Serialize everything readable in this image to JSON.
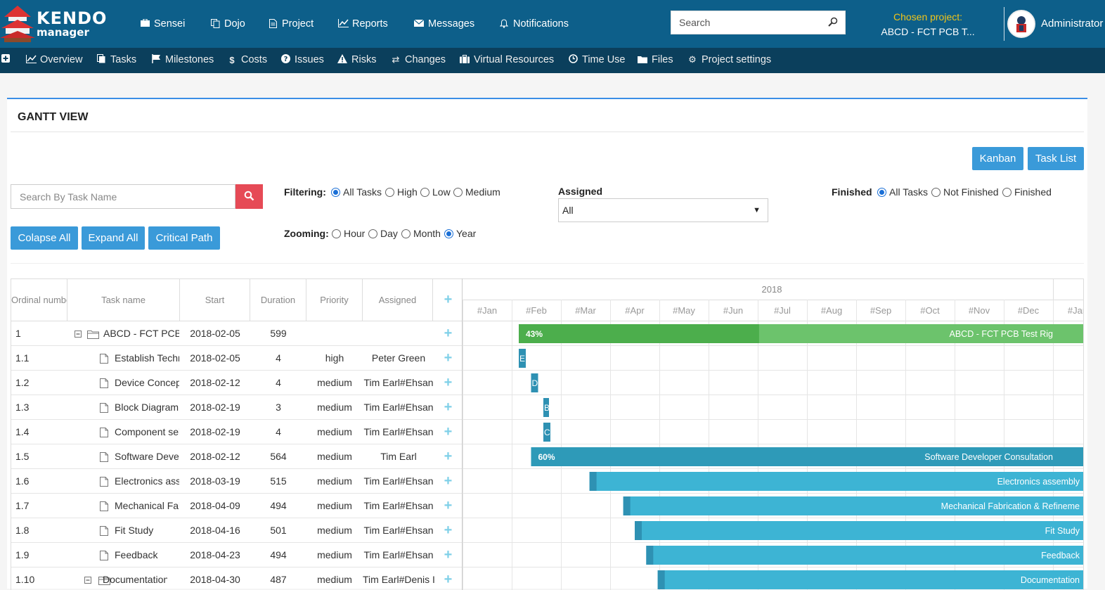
{
  "nav": {
    "brand_top": "KENDO",
    "brand_bottom": "manager",
    "items": [
      {
        "label": "Sensei",
        "icon": "briefcase-icon"
      },
      {
        "label": "Dojo",
        "icon": "copy-icon"
      },
      {
        "label": "Project",
        "icon": "document-icon"
      },
      {
        "label": "Reports",
        "icon": "line-chart-icon"
      },
      {
        "label": "Messages",
        "icon": "envelope-icon"
      },
      {
        "label": "Notifications",
        "icon": "bell-icon"
      }
    ],
    "search_placeholder": "Search",
    "chosen_label": "Chosen project:",
    "chosen_value": "ABCD - FCT PCB T...",
    "user": "Administrator"
  },
  "subnav": {
    "items": [
      {
        "label": "Overview",
        "icon": "area-chart-icon"
      },
      {
        "label": "Tasks",
        "icon": "tasks-icon"
      },
      {
        "label": "Milestones",
        "icon": "flag-icon"
      },
      {
        "label": "Costs",
        "icon": "dollar-icon"
      },
      {
        "label": "Issues",
        "icon": "question-circle-icon"
      },
      {
        "label": "Risks",
        "icon": "warning-icon"
      },
      {
        "label": "Changes",
        "icon": "exchange-icon"
      },
      {
        "label": "Virtual Resources",
        "icon": "suitcase-icon"
      },
      {
        "label": "Time Use",
        "icon": "clock-icon"
      },
      {
        "label": "Files",
        "icon": "folder-icon"
      },
      {
        "label": "Project settings",
        "icon": "cogs-icon"
      }
    ]
  },
  "page": {
    "title": "GANTT VIEW",
    "kanban": "Kanban",
    "task_list": "Task List",
    "task_search_placeholder": "Search By Task Name",
    "collapse_all": "Colapse All",
    "expand_all": "Expand All",
    "critical_path": "Critical Path"
  },
  "filters": {
    "filtering_label": "Filtering:",
    "filtering_options": [
      "All Tasks",
      "High",
      "Low",
      "Medium"
    ],
    "filtering_selected": 0,
    "zooming_label": "Zooming:",
    "zooming_options": [
      "Hour",
      "Day",
      "Month",
      "Year"
    ],
    "zooming_selected": 3,
    "assigned_label": "Assigned",
    "assigned_value": "All",
    "finished_label": "Finished",
    "finished_options": [
      "All Tasks",
      "Not Finished",
      "Finished"
    ],
    "finished_selected": 0
  },
  "grid": {
    "columns": [
      "Ordinal numbe",
      "Task name",
      "Start",
      "Duration",
      "Priority",
      "Assigned"
    ],
    "rows": [
      {
        "num": "1",
        "name": "ABCD - FCT PCB T",
        "start": "2018-02-05",
        "duration": "599",
        "priority": "",
        "assigned": "",
        "type": "folder"
      },
      {
        "num": "1.1",
        "name": "Establish Techn",
        "start": "2018-02-05",
        "duration": "4",
        "priority": "high",
        "assigned": "Peter Green",
        "type": "file"
      },
      {
        "num": "1.2",
        "name": "Device Concept",
        "start": "2018-02-12",
        "duration": "4",
        "priority": "medium",
        "assigned": "Tim Earl#Ehsan",
        "type": "file"
      },
      {
        "num": "1.3",
        "name": "Block Diagram",
        "start": "2018-02-19",
        "duration": "3",
        "priority": "medium",
        "assigned": "Tim Earl#Ehsan",
        "type": "file"
      },
      {
        "num": "1.4",
        "name": "Component sele",
        "start": "2018-02-19",
        "duration": "4",
        "priority": "medium",
        "assigned": "Tim Earl#Ehsan",
        "type": "file"
      },
      {
        "num": "1.5",
        "name": "Software Develo",
        "start": "2018-02-12",
        "duration": "564",
        "priority": "medium",
        "assigned": "Tim Earl",
        "type": "file"
      },
      {
        "num": "1.6",
        "name": "Electronics asse",
        "start": "2018-03-19",
        "duration": "515",
        "priority": "medium",
        "assigned": "Tim Earl#Ehsan",
        "type": "file"
      },
      {
        "num": "1.7",
        "name": "Mechanical Fab",
        "start": "2018-04-09",
        "duration": "494",
        "priority": "medium",
        "assigned": "Tim Earl#Ehsan",
        "type": "file"
      },
      {
        "num": "1.8",
        "name": "Fit Study",
        "start": "2018-04-16",
        "duration": "501",
        "priority": "medium",
        "assigned": "Tim Earl#Ehsan",
        "type": "file"
      },
      {
        "num": "1.9",
        "name": "Feedback",
        "start": "2018-04-23",
        "duration": "494",
        "priority": "medium",
        "assigned": "Tim Earl#Ehsan",
        "type": "file"
      },
      {
        "num": "1.10",
        "name": "Documentation",
        "start": "2018-04-30",
        "duration": "487",
        "priority": "medium",
        "assigned": "Tim Earl#Denis I",
        "type": "folder"
      }
    ]
  },
  "gantt": {
    "year": "2018",
    "months": [
      "#Jan",
      "#Feb",
      "#Mar",
      "#Apr",
      "#May",
      "#Jun",
      "#Jul",
      "#Aug",
      "#Sep",
      "#Oct",
      "#Nov",
      "#Dec",
      "#Jan"
    ],
    "bars": [
      {
        "start": "2018-02-05",
        "progress": 0.43,
        "progress_label": "43%",
        "label": "ABCD - FCT PCB Test Rig",
        "color": "#4cae4c",
        "fill": "#6cc36c"
      },
      {
        "start": "2018-02-05",
        "days": 4,
        "label": "E",
        "color": "#2e91b3",
        "fill": "#2e91b3"
      },
      {
        "start": "2018-02-12",
        "days": 4,
        "label": "D",
        "color": "#2e91b3",
        "fill": "#2e91b3"
      },
      {
        "start": "2018-02-19",
        "days": 3,
        "label": "B",
        "color": "#2e91b3",
        "fill": "#2e91b3"
      },
      {
        "start": "2018-02-19",
        "days": 4,
        "label": "C",
        "color": "#2e91b3",
        "fill": "#2e91b3"
      },
      {
        "start": "2018-02-12",
        "progress": 0.6,
        "progress_label": "60%",
        "label": "Software Developer Consultation",
        "color": "#2e9ab8",
        "fill": "#2e9ab8"
      },
      {
        "start": "2018-03-19",
        "label": "Electronics assembly",
        "color": "#2e91b3",
        "fill": "#3db4d4"
      },
      {
        "start": "2018-04-09",
        "label": "Mechanical Fabrication & Refineme",
        "color": "#2e91b3",
        "fill": "#3db4d4"
      },
      {
        "start": "2018-04-16",
        "label": "Fit Study",
        "color": "#2e91b3",
        "fill": "#3db4d4"
      },
      {
        "start": "2018-04-23",
        "label": "Feedback",
        "color": "#2e91b3",
        "fill": "#3db4d4"
      },
      {
        "start": "2018-04-30",
        "label": "Documentation",
        "color": "#2e91b3",
        "fill": "#3db4d4"
      }
    ]
  }
}
